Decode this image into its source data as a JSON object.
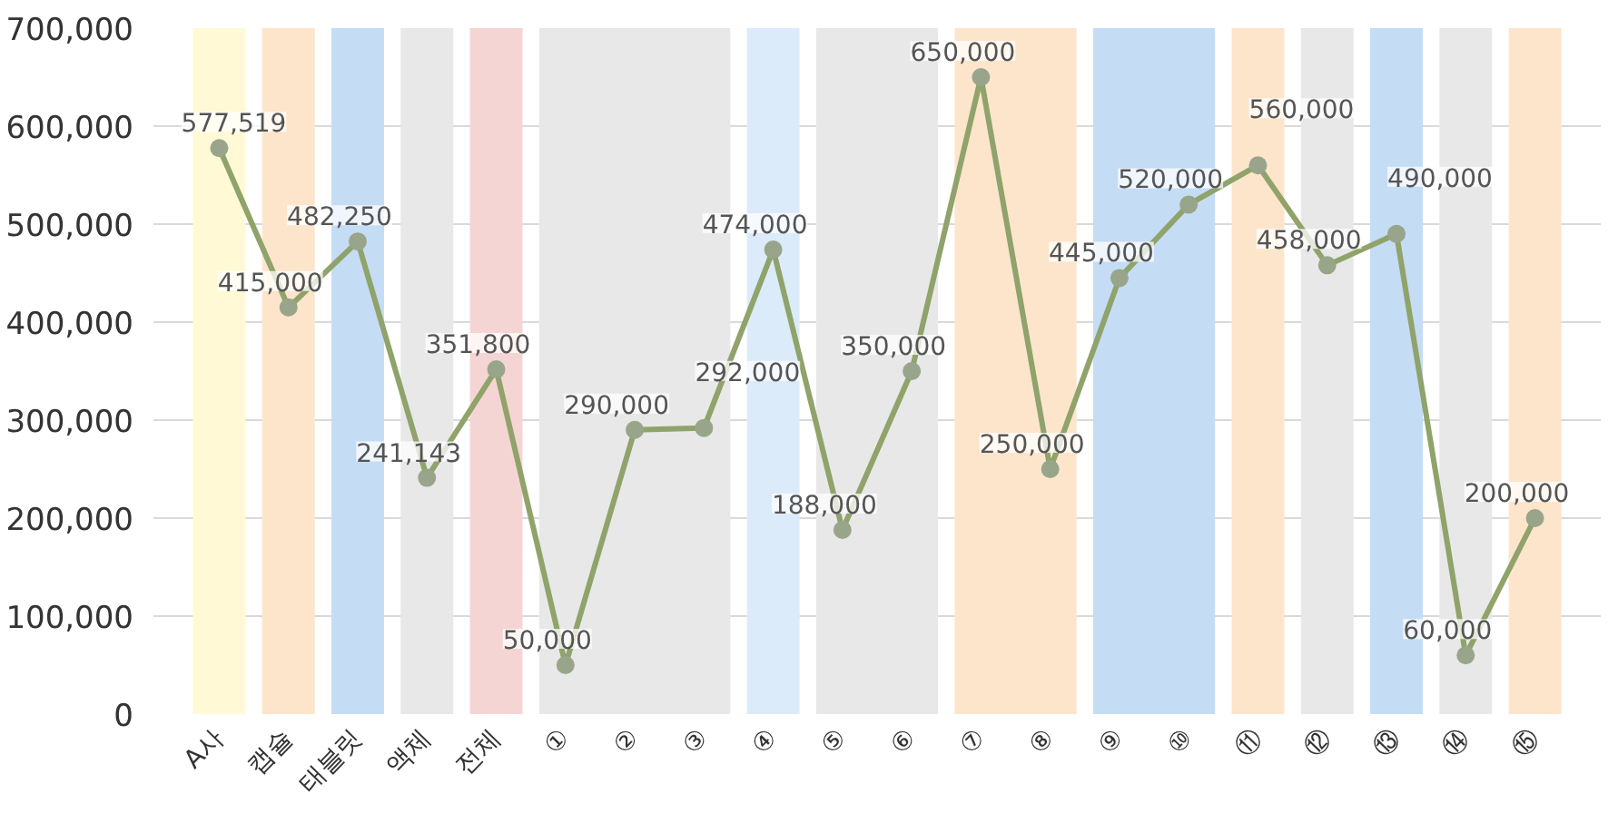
{
  "chart_data": {
    "type": "line",
    "categories": [
      "A사",
      "캡슐",
      "태블릿",
      "액체",
      "전체",
      "①",
      "②",
      "③",
      "④",
      "⑤",
      "⑥",
      "⑦",
      "⑧",
      "⑨",
      "⑩",
      "⑪",
      "⑫",
      "⑬",
      "⑭",
      "⑮"
    ],
    "series": [
      {
        "color": "#8fa36a",
        "values": [
          577519,
          415000,
          482250,
          241143,
          351800,
          50000,
          290000,
          292000,
          474000,
          188000,
          350000,
          650000,
          250000,
          445000,
          520000,
          560000,
          458000,
          490000,
          60000,
          200000
        ],
        "value_labels": [
          "577,519",
          "415,000",
          "482,250",
          "241,143",
          "351,800",
          "50,000",
          "290,000",
          "292,000",
          "474,000",
          "188,000",
          "350,000",
          "650,000",
          "250,000",
          "445,000",
          "520,000",
          "560,000",
          "458,000",
          "490,000",
          "60,000",
          "200,000"
        ]
      }
    ],
    "ylim": [
      0,
      700000
    ],
    "yticks": [
      0,
      {
        "value": 100000,
        "label": "100,000"
      },
      {
        "value": 200000,
        "label": "200,000"
      },
      {
        "value": 300000,
        "label": "300,000"
      },
      {
        "value": 400000,
        "label": "400,000"
      },
      {
        "value": 500000,
        "label": "500,000"
      },
      {
        "value": 600000,
        "label": "600,000"
      },
      {
        "value": 700000,
        "label": "700,000"
      }
    ],
    "grid": "y",
    "marker": "circle",
    "line_style": "solid",
    "bands": [
      {
        "axis": "x",
        "from": "A사",
        "to": "A사",
        "color": "#fff9d6"
      },
      {
        "axis": "x",
        "from": "캡슐",
        "to": "캡슐",
        "color": "#fde5cc"
      },
      {
        "axis": "x",
        "from": "태블릿",
        "to": "태블릿",
        "color": "#c5dcf5"
      },
      {
        "axis": "x",
        "from": "액체",
        "to": "액체",
        "color": "#e8e8e8"
      },
      {
        "axis": "x",
        "from": "전체",
        "to": "전체",
        "color": "#f5d5d3"
      },
      {
        "axis": "x",
        "from": "①",
        "to": "③",
        "color": "#e8e8e8"
      },
      {
        "axis": "x",
        "from": "④",
        "to": "④",
        "color": "#dcebfa"
      },
      {
        "axis": "x",
        "from": "⑤",
        "to": "⑥",
        "color": "#e8e8e8"
      },
      {
        "axis": "x",
        "from": "⑦",
        "to": "⑧",
        "color": "#fde5cc"
      },
      {
        "axis": "x",
        "from": "⑨",
        "to": "⑩",
        "color": "#c5dcf5"
      },
      {
        "axis": "x",
        "from": "⑪",
        "to": "⑪",
        "color": "#fde5cc"
      },
      {
        "axis": "x",
        "from": "⑫",
        "to": "⑫",
        "color": "#e8e8e8"
      },
      {
        "axis": "x",
        "from": "⑬",
        "to": "⑬",
        "color": "#c5dcf5"
      },
      {
        "axis": "x",
        "from": "⑭",
        "to": "⑭",
        "color": "#e8e8e8"
      },
      {
        "axis": "x",
        "from": "⑮",
        "to": "⑮",
        "color": "#fde5cc"
      }
    ]
  }
}
